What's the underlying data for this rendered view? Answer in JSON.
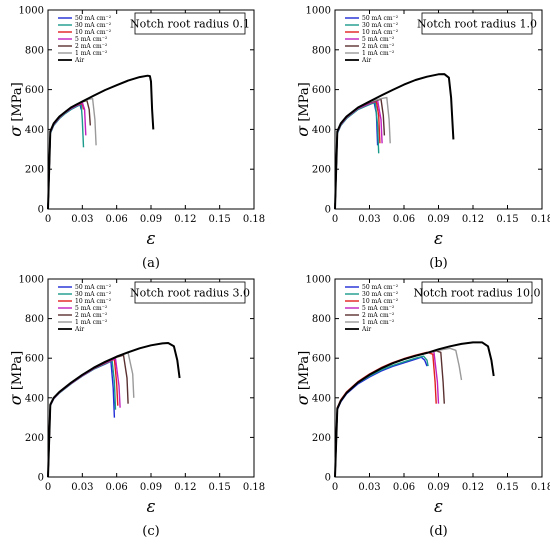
{
  "colors": {
    "50 mA cm-2": "#1f2bd6",
    "30 mA cm-2": "#1a9a8a",
    "10 mA cm-2": "#e02020",
    "5 mA cm-2": "#c020c0",
    "2 mA cm-2": "#5a3030",
    "1 mA cm-2": "#9a9a9a",
    "Air": "#000000"
  },
  "axes_labels": {
    "x": "ε",
    "y_sym": "σ",
    "y_unit": "[MPa]"
  },
  "chart_data": [
    {
      "type": "line",
      "panel": "(a)",
      "annotation": "Notch root radius 0.1",
      "xlabel": "ε",
      "ylabel": "σ [MPa]",
      "xlim": [
        0,
        0.18
      ],
      "ylim": [
        0,
        1000
      ],
      "xticks": [
        "0",
        "0.03",
        "0.06",
        "0.09",
        "0.12",
        "0.15",
        "0.18"
      ],
      "yticks": [
        "0",
        "200",
        "400",
        "600",
        "800",
        "1000"
      ],
      "legend_position": "top-left",
      "series": [
        {
          "name": "50 mA cm⁻²",
          "color_key": "50 mA cm-2",
          "x": [
            0,
            0.002,
            0.005,
            0.01,
            0.015,
            0.02,
            0.025,
            0.028,
            0.029
          ],
          "y": [
            0,
            380,
            420,
            455,
            480,
            500,
            515,
            525,
            500
          ]
        },
        {
          "name": "30 mA cm⁻²",
          "color_key": "30 mA cm-2",
          "x": [
            0,
            0.002,
            0.005,
            0.01,
            0.015,
            0.02,
            0.025,
            0.029,
            0.03,
            0.031
          ],
          "y": [
            0,
            380,
            420,
            455,
            480,
            500,
            515,
            525,
            450,
            310
          ]
        },
        {
          "name": "10 mA cm⁻²",
          "color_key": "10 mA cm-2",
          "x": [
            0,
            0.002,
            0.005,
            0.01,
            0.015,
            0.02,
            0.025,
            0.03,
            0.031
          ],
          "y": [
            0,
            385,
            425,
            460,
            485,
            505,
            520,
            530,
            500
          ]
        },
        {
          "name": "5 mA cm⁻²",
          "color_key": "5 mA cm-2",
          "x": [
            0,
            0.002,
            0.005,
            0.01,
            0.015,
            0.02,
            0.025,
            0.03,
            0.032,
            0.033
          ],
          "y": [
            0,
            385,
            425,
            460,
            485,
            505,
            520,
            535,
            500,
            370
          ]
        },
        {
          "name": "2 mA cm⁻²",
          "color_key": "2 mA cm-2",
          "x": [
            0,
            0.002,
            0.005,
            0.01,
            0.015,
            0.02,
            0.025,
            0.03,
            0.034,
            0.036,
            0.037
          ],
          "y": [
            0,
            388,
            428,
            462,
            488,
            508,
            525,
            538,
            545,
            500,
            420
          ]
        },
        {
          "name": "1 mA cm⁻²",
          "color_key": "1 mA cm-2",
          "x": [
            0,
            0.002,
            0.005,
            0.01,
            0.015,
            0.02,
            0.025,
            0.03,
            0.035,
            0.039,
            0.041,
            0.042
          ],
          "y": [
            0,
            390,
            430,
            465,
            490,
            510,
            527,
            540,
            550,
            555,
            450,
            320
          ]
        },
        {
          "name": "Air",
          "color_key": "Air",
          "x": [
            0,
            0.002,
            0.005,
            0.01,
            0.02,
            0.03,
            0.04,
            0.05,
            0.06,
            0.07,
            0.08,
            0.087,
            0.089,
            0.09,
            0.091,
            0.092
          ],
          "y": [
            0,
            390,
            430,
            465,
            510,
            540,
            570,
            598,
            622,
            645,
            663,
            670,
            668,
            640,
            500,
            400
          ]
        }
      ]
    },
    {
      "type": "line",
      "panel": "(b)",
      "annotation": "Notch root radius 1.0",
      "xlabel": "ε",
      "ylabel": "σ [MPa]",
      "xlim": [
        0,
        0.18
      ],
      "ylim": [
        0,
        1000
      ],
      "xticks": [
        "0",
        "0.03",
        "0.06",
        "0.09",
        "0.12",
        "0.15",
        "0.18"
      ],
      "yticks": [
        "0",
        "200",
        "400",
        "600",
        "800",
        "1000"
      ],
      "legend_position": "top-left",
      "series": [
        {
          "name": "50 mA cm⁻²",
          "color_key": "50 mA cm-2",
          "x": [
            0,
            0.002,
            0.005,
            0.01,
            0.02,
            0.03,
            0.034,
            0.036,
            0.037
          ],
          "y": [
            0,
            380,
            420,
            455,
            500,
            525,
            535,
            480,
            320
          ]
        },
        {
          "name": "30 mA cm⁻²",
          "color_key": "30 mA cm-2",
          "x": [
            0,
            0.002,
            0.005,
            0.01,
            0.02,
            0.03,
            0.035,
            0.037,
            0.038
          ],
          "y": [
            0,
            380,
            420,
            455,
            500,
            525,
            535,
            420,
            280
          ]
        },
        {
          "name": "10 mA cm⁻²",
          "color_key": "10 mA cm-2",
          "x": [
            0,
            0.002,
            0.005,
            0.01,
            0.02,
            0.03,
            0.036,
            0.038,
            0.039
          ],
          "y": [
            0,
            385,
            425,
            460,
            505,
            530,
            540,
            470,
            330
          ]
        },
        {
          "name": "5 mA cm⁻²",
          "color_key": "5 mA cm-2",
          "x": [
            0,
            0.002,
            0.005,
            0.01,
            0.02,
            0.03,
            0.037,
            0.04,
            0.041
          ],
          "y": [
            0,
            385,
            425,
            460,
            505,
            530,
            545,
            450,
            330
          ]
        },
        {
          "name": "2 mA cm⁻²",
          "color_key": "2 mA cm-2",
          "x": [
            0,
            0.002,
            0.005,
            0.01,
            0.02,
            0.03,
            0.04,
            0.042,
            0.043
          ],
          "y": [
            0,
            388,
            428,
            462,
            508,
            535,
            552,
            470,
            370
          ]
        },
        {
          "name": "1 mA cm⁻²",
          "color_key": "1 mA cm-2",
          "x": [
            0,
            0.002,
            0.005,
            0.01,
            0.02,
            0.03,
            0.04,
            0.045,
            0.047,
            0.048
          ],
          "y": [
            0,
            390,
            430,
            465,
            510,
            538,
            555,
            560,
            450,
            330
          ]
        },
        {
          "name": "Air",
          "color_key": "Air",
          "x": [
            0,
            0.002,
            0.005,
            0.01,
            0.02,
            0.03,
            0.04,
            0.05,
            0.06,
            0.07,
            0.08,
            0.09,
            0.095,
            0.099,
            0.101,
            0.102,
            0.103
          ],
          "y": [
            0,
            390,
            430,
            465,
            510,
            540,
            570,
            598,
            625,
            648,
            665,
            677,
            678,
            660,
            560,
            450,
            350
          ]
        }
      ]
    },
    {
      "type": "line",
      "panel": "(c)",
      "annotation": "Notch root radius 3.0",
      "xlabel": "ε",
      "ylabel": "σ [MPa]",
      "xlim": [
        0,
        0.18
      ],
      "ylim": [
        0,
        1000
      ],
      "xticks": [
        "0",
        "0.03",
        "0.06",
        "0.09",
        "0.12",
        "0.15",
        "0.18"
      ],
      "yticks": [
        "0",
        "200",
        "400",
        "600",
        "800",
        "1000"
      ],
      "legend_position": "top-left",
      "series": [
        {
          "name": "50 mA cm⁻²",
          "color_key": "50 mA cm-2",
          "x": [
            0,
            0.002,
            0.005,
            0.01,
            0.02,
            0.03,
            0.04,
            0.05,
            0.055,
            0.057,
            0.058
          ],
          "y": [
            0,
            360,
            395,
            425,
            470,
            510,
            545,
            570,
            585,
            450,
            300
          ]
        },
        {
          "name": "30 mA cm⁻²",
          "color_key": "30 mA cm-2",
          "x": [
            0,
            0.002,
            0.005,
            0.01,
            0.02,
            0.03,
            0.04,
            0.05,
            0.056,
            0.058,
            0.059
          ],
          "y": [
            0,
            360,
            395,
            425,
            470,
            510,
            545,
            572,
            588,
            480,
            340
          ]
        },
        {
          "name": "10 mA cm⁻²",
          "color_key": "10 mA cm-2",
          "x": [
            0,
            0.002,
            0.005,
            0.01,
            0.02,
            0.03,
            0.04,
            0.05,
            0.058,
            0.06,
            0.061
          ],
          "y": [
            0,
            362,
            397,
            427,
            472,
            512,
            548,
            575,
            595,
            470,
            360
          ]
        },
        {
          "name": "5 mA cm⁻²",
          "color_key": "5 mA cm-2",
          "x": [
            0,
            0.002,
            0.005,
            0.01,
            0.02,
            0.03,
            0.04,
            0.05,
            0.059,
            0.062,
            0.063
          ],
          "y": [
            0,
            362,
            397,
            427,
            472,
            512,
            548,
            577,
            598,
            460,
            350
          ]
        },
        {
          "name": "2 mA cm⁻²",
          "color_key": "2 mA cm-2",
          "x": [
            0,
            0.002,
            0.005,
            0.01,
            0.02,
            0.03,
            0.04,
            0.05,
            0.06,
            0.066,
            0.069,
            0.07
          ],
          "y": [
            0,
            363,
            398,
            428,
            474,
            514,
            550,
            580,
            605,
            615,
            500,
            370
          ]
        },
        {
          "name": "1 mA cm⁻²",
          "color_key": "1 mA cm-2",
          "x": [
            0,
            0.002,
            0.005,
            0.01,
            0.02,
            0.03,
            0.04,
            0.05,
            0.06,
            0.07,
            0.074,
            0.075
          ],
          "y": [
            0,
            365,
            400,
            430,
            476,
            516,
            552,
            582,
            608,
            628,
            520,
            400
          ]
        },
        {
          "name": "Air",
          "color_key": "Air",
          "x": [
            0,
            0.002,
            0.005,
            0.01,
            0.02,
            0.03,
            0.04,
            0.05,
            0.06,
            0.07,
            0.08,
            0.09,
            0.1,
            0.105,
            0.11,
            0.113,
            0.115
          ],
          "y": [
            0,
            365,
            400,
            430,
            476,
            516,
            552,
            582,
            608,
            630,
            650,
            665,
            675,
            677,
            660,
            590,
            500
          ]
        }
      ]
    },
    {
      "type": "line",
      "panel": "(d)",
      "annotation": "Notch root radius 10.0",
      "xlabel": "ε",
      "ylabel": "σ [MPa]",
      "xlim": [
        0,
        0.18
      ],
      "ylim": [
        0,
        1000
      ],
      "xticks": [
        "0",
        "0.03",
        "0.06",
        "0.09",
        "0.12",
        "0.15",
        "0.18"
      ],
      "yticks": [
        "0",
        "200",
        "400",
        "600",
        "800",
        "1000"
      ],
      "legend_position": "top-left",
      "series": [
        {
          "name": "50 mA cm⁻²",
          "color_key": "50 mA cm-2",
          "x": [
            0,
            0.002,
            0.005,
            0.01,
            0.02,
            0.03,
            0.04,
            0.05,
            0.06,
            0.07,
            0.075,
            0.078,
            0.08
          ],
          "y": [
            0,
            340,
            380,
            420,
            470,
            505,
            535,
            558,
            577,
            595,
            605,
            590,
            560
          ]
        },
        {
          "name": "30 mA cm⁻²",
          "color_key": "30 mA cm-2",
          "x": [
            0,
            0.002,
            0.005,
            0.01,
            0.02,
            0.03,
            0.04,
            0.05,
            0.06,
            0.07,
            0.077,
            0.08,
            0.081
          ],
          "y": [
            0,
            345,
            385,
            425,
            475,
            510,
            540,
            563,
            582,
            600,
            610,
            590,
            560
          ]
        },
        {
          "name": "10 mA cm⁻²",
          "color_key": "10 mA cm-2",
          "x": [
            0,
            0.002,
            0.005,
            0.01,
            0.02,
            0.03,
            0.04,
            0.05,
            0.06,
            0.07,
            0.08,
            0.085,
            0.087,
            0.088
          ],
          "y": [
            0,
            350,
            390,
            430,
            482,
            520,
            552,
            578,
            598,
            615,
            630,
            620,
            480,
            370
          ]
        },
        {
          "name": "5 mA cm⁻²",
          "color_key": "5 mA cm-2",
          "x": [
            0,
            0.002,
            0.005,
            0.01,
            0.02,
            0.03,
            0.04,
            0.05,
            0.06,
            0.07,
            0.08,
            0.086,
            0.089,
            0.09
          ],
          "y": [
            0,
            345,
            385,
            425,
            478,
            516,
            548,
            574,
            595,
            612,
            627,
            633,
            480,
            370
          ]
        },
        {
          "name": "2 mA cm⁻²",
          "color_key": "2 mA cm-2",
          "x": [
            0,
            0.002,
            0.005,
            0.01,
            0.02,
            0.03,
            0.04,
            0.05,
            0.06,
            0.07,
            0.08,
            0.088,
            0.092,
            0.094,
            0.095
          ],
          "y": [
            0,
            345,
            385,
            425,
            478,
            516,
            548,
            574,
            595,
            612,
            627,
            637,
            630,
            480,
            370
          ]
        },
        {
          "name": "1 mA cm⁻²",
          "color_key": "1 mA cm-2",
          "x": [
            0,
            0.002,
            0.005,
            0.01,
            0.02,
            0.03,
            0.04,
            0.05,
            0.06,
            0.07,
            0.08,
            0.09,
            0.1,
            0.105,
            0.108,
            0.11
          ],
          "y": [
            0,
            345,
            385,
            425,
            478,
            516,
            548,
            574,
            595,
            612,
            627,
            640,
            650,
            640,
            560,
            490
          ]
        },
        {
          "name": "Air",
          "color_key": "Air",
          "x": [
            0,
            0.002,
            0.005,
            0.01,
            0.02,
            0.03,
            0.04,
            0.05,
            0.06,
            0.07,
            0.08,
            0.09,
            0.1,
            0.11,
            0.12,
            0.128,
            0.133,
            0.136,
            0.138
          ],
          "y": [
            0,
            345,
            385,
            425,
            478,
            516,
            548,
            574,
            595,
            612,
            627,
            645,
            660,
            672,
            680,
            680,
            660,
            590,
            510
          ]
        }
      ]
    }
  ]
}
